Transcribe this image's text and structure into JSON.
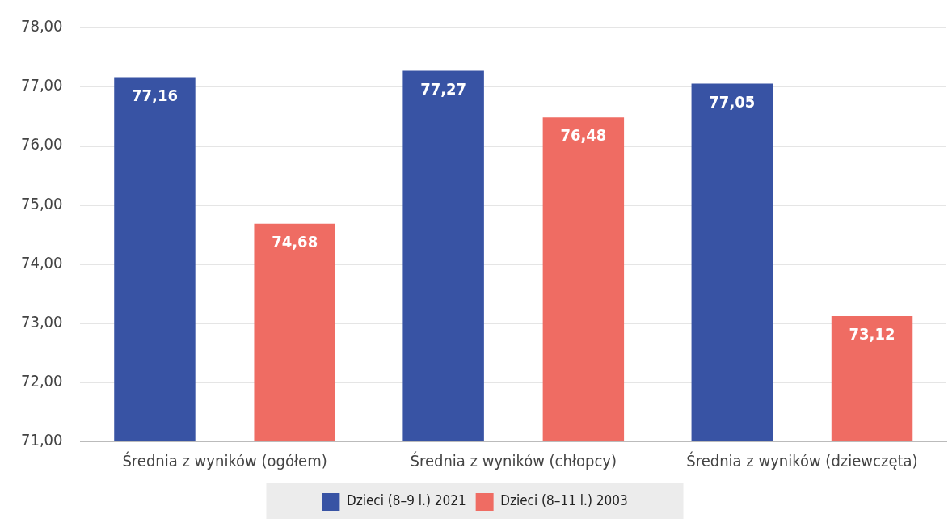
{
  "chart_data": {
    "type": "bar",
    "categories": [
      "Średnia z wyników (ogółem)",
      "Średnia z wyników (chłopcy)",
      "Średnia z wyników (dziewczęta)"
    ],
    "series": [
      {
        "name": "Dzieci (8–9 l.) 2021",
        "color": "#3853a4",
        "values": [
          77.16,
          77.27,
          77.05
        ],
        "value_labels": [
          "77,16",
          "77,27",
          "77,05"
        ]
      },
      {
        "name": "Dzieci (8–11 l.) 2003",
        "color": "#ef6c63",
        "values": [
          74.68,
          76.48,
          73.12
        ],
        "value_labels": [
          "74,68",
          "76,48",
          "73,12"
        ]
      }
    ],
    "ylim": [
      71,
      78
    ],
    "yticks": [
      {
        "value": 71,
        "label": "71,00"
      },
      {
        "value": 72,
        "label": "72,00"
      },
      {
        "value": 73,
        "label": "73,00"
      },
      {
        "value": 74,
        "label": "74,00"
      },
      {
        "value": 75,
        "label": "75,00"
      },
      {
        "value": 76,
        "label": "76,00"
      },
      {
        "value": 77,
        "label": "77,00"
      },
      {
        "value": 78,
        "label": "78,00"
      }
    ],
    "grid": "y",
    "legend": "bottom"
  }
}
